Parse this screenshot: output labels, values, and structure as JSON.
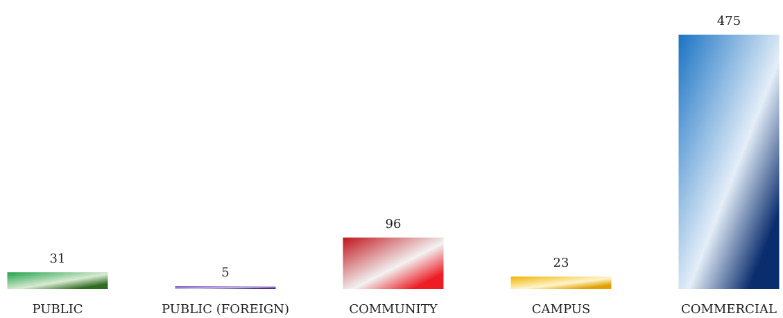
{
  "chart_data": {
    "type": "bar",
    "title": "",
    "xlabel": "",
    "ylabel": "",
    "categories": [
      "PUBLIC",
      "PUBLIC (FOREIGN)",
      "COMMUNITY",
      "CAMPUS",
      "COMMERCIAL"
    ],
    "values": [
      31,
      5,
      96,
      23,
      475
    ],
    "value_labels": [
      "31",
      "5",
      "96",
      "23",
      "475"
    ],
    "ylim": [
      0,
      475
    ],
    "grid": false,
    "legend": "none",
    "colors": [
      {
        "top": "#1fa34a",
        "mid": "#d9ead3",
        "bottom": "#2f6b22"
      },
      {
        "top": "#6a3fb5",
        "mid": "#cfc2ea",
        "bottom": "#4b2a8c"
      },
      {
        "top": "#c0141c",
        "mid": "#f2f2f2",
        "bottom": "#ee1c24",
        "accent": "#a9c2e6"
      },
      {
        "top": "#f0b400",
        "mid": "#fff5cc",
        "bottom": "#e0a000"
      },
      {
        "top": "#1a73c4",
        "mid": "#e4eef8",
        "bottom": "#0a2d6e"
      }
    ]
  }
}
